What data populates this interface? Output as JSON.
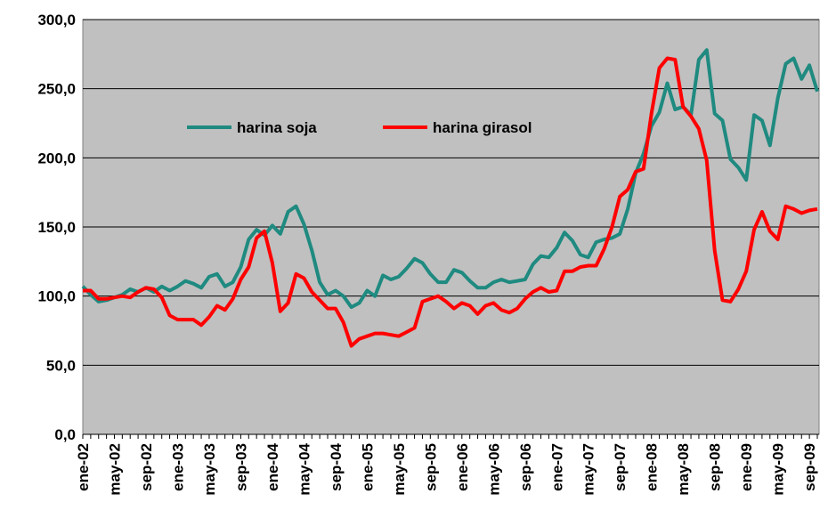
{
  "chart_data": {
    "type": "line",
    "categories": [
      "ene-02",
      null,
      null,
      null,
      "may-02",
      null,
      null,
      null,
      "sep-02",
      null,
      null,
      null,
      "ene-03",
      null,
      null,
      null,
      "may-03",
      null,
      null,
      null,
      "sep-03",
      null,
      null,
      null,
      "ene-04",
      null,
      null,
      null,
      "may-04",
      null,
      null,
      null,
      "sep-04",
      null,
      null,
      null,
      "ene-05",
      null,
      null,
      null,
      "may-05",
      null,
      null,
      null,
      "sep-05",
      null,
      null,
      null,
      "ene-06",
      null,
      null,
      null,
      "may-06",
      null,
      null,
      null,
      "sep-06",
      null,
      null,
      null,
      "ene-07",
      null,
      null,
      null,
      "may-07",
      null,
      null,
      null,
      "sep-07",
      null,
      null,
      null,
      "ene-08",
      null,
      null,
      null,
      "may-08",
      null,
      null,
      null,
      "sep-08",
      null,
      null,
      null,
      "ene-09",
      null,
      null,
      null,
      "may-09",
      null,
      null,
      null,
      "sep-09",
      null
    ],
    "series": [
      {
        "name": "harina soja",
        "color": "#1f8a80",
        "values": [
          107,
          101,
          96,
          97,
          99,
          101,
          105,
          103,
          106,
          103,
          107,
          104,
          107,
          111,
          109,
          106,
          114,
          116,
          107,
          110,
          121,
          141,
          148,
          144,
          151,
          145,
          161,
          165,
          152,
          133,
          110,
          101,
          104,
          100,
          92,
          95,
          104,
          100,
          115,
          112,
          114,
          120,
          127,
          124,
          116,
          110,
          110,
          119,
          117,
          111,
          106,
          106,
          110,
          112,
          110,
          111,
          112,
          123,
          129,
          128,
          135,
          146,
          140,
          130,
          128,
          139,
          141,
          142,
          145,
          163,
          189,
          203,
          223,
          233,
          254,
          235,
          237,
          231,
          271,
          278,
          232,
          227,
          199,
          193,
          184,
          231,
          227,
          209,
          243,
          268,
          272,
          257,
          267,
          248
        ]
      },
      {
        "name": "harina girasol",
        "color": "#ff0000",
        "values": [
          104,
          104,
          98,
          98,
          99,
          100,
          99,
          103,
          106,
          105,
          99,
          86,
          83,
          83,
          83,
          79,
          85,
          93,
          90,
          98,
          112,
          121,
          142,
          147,
          124,
          89,
          95,
          116,
          113,
          103,
          97,
          91,
          91,
          81,
          64,
          69,
          71,
          73,
          73,
          72,
          71,
          74,
          77,
          96,
          98,
          100,
          96,
          91,
          95,
          93,
          87,
          93,
          95,
          90,
          88,
          91,
          98,
          103,
          106,
          103,
          104,
          118,
          118,
          121,
          122,
          122,
          134,
          150,
          172,
          177,
          190,
          192,
          232,
          265,
          272,
          271,
          237,
          230,
          221,
          198,
          133,
          97,
          96,
          105,
          118,
          148,
          161,
          147,
          141,
          165,
          163,
          160,
          162,
          163
        ]
      }
    ],
    "ylim": [
      0,
      300
    ],
    "yticks": [
      {
        "value": 0,
        "label": "0,0"
      },
      {
        "value": 50,
        "label": "50,0"
      },
      {
        "value": 100,
        "label": "100,0"
      },
      {
        "value": 150,
        "label": "150,0"
      },
      {
        "value": 200,
        "label": "200,0"
      },
      {
        "value": 250,
        "label": "250,0"
      },
      {
        "value": 300,
        "label": "300,0"
      }
    ],
    "grid": true
  }
}
